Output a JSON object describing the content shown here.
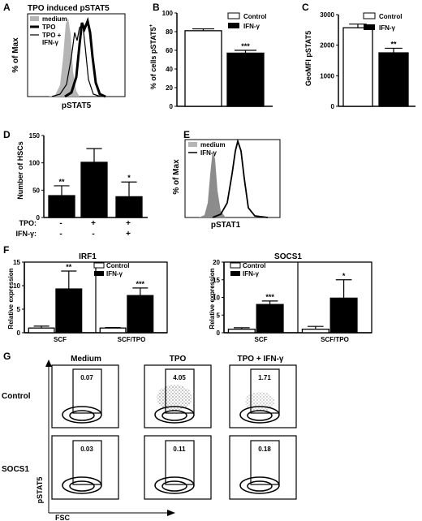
{
  "panel_labels": [
    "A",
    "B",
    "C",
    "D",
    "E",
    "F",
    "G"
  ],
  "panel_a": {
    "title": "TPO induced pSTAT5",
    "ylabel": "% of Max",
    "xlabel": "pSTAT5",
    "legend": [
      {
        "label": "medium",
        "style": "gray-fill"
      },
      {
        "label": "TPO",
        "style": "black-thick"
      },
      {
        "label": "TPO +",
        "style": "black-thin"
      },
      {
        "label": "IFN-γ",
        "style": "none"
      }
    ]
  },
  "panel_b": {
    "ylabel": "% of cells pSTAT5",
    "ylabel_sup": "+",
    "legend": [
      "Control",
      "IFN-γ"
    ],
    "sig": "***"
  },
  "panel_c": {
    "ylabel": "GeoMFI pSTAT5",
    "legend": [
      "Control",
      "IFN-γ"
    ],
    "sig": "**"
  },
  "panel_d": {
    "ylabel": "Number of HSCs",
    "row_labels": [
      "TPO:",
      "IFN-γ:"
    ],
    "tpo": [
      "-",
      "+",
      "+"
    ],
    "ifn": [
      "-",
      "-",
      "+"
    ],
    "sig": [
      "**",
      "",
      "*"
    ]
  },
  "panel_e": {
    "ylabel": "% of Max",
    "xlabel": "pSTAT1",
    "legend": [
      "medium",
      "IFN-γ"
    ]
  },
  "panel_f": {
    "ylabel": "Relative expression",
    "legend": [
      "Control",
      "IFN-γ"
    ],
    "groups": [
      "SCF",
      "SCF/TPO"
    ],
    "sig": [
      [
        "",
        "**"
      ],
      [
        "",
        "***"
      ]
    ],
    "sig2": [
      [
        "",
        "***"
      ],
      [
        "",
        "*"
      ]
    ]
  },
  "panel_g": {
    "columns": [
      "Medium",
      "TPO",
      "TPO + IFN-γ"
    ],
    "rows": [
      "Control",
      "SOCS1"
    ],
    "values": [
      [
        "0.07",
        "4.05",
        "1.71"
      ],
      [
        "0.03",
        "0.11",
        "0.18"
      ]
    ],
    "ylabel": "pSTAT5",
    "xlabel": "FSC"
  },
  "chart_data": [
    {
      "type": "bar",
      "panel": "B",
      "categories": [
        "Control",
        "IFN-γ"
      ],
      "values": [
        81,
        57
      ],
      "errors": [
        2,
        3
      ],
      "colors": [
        "#ffffff",
        "#000000"
      ],
      "ylim": [
        0,
        100
      ],
      "yticks": [
        0,
        20,
        40,
        60,
        80,
        100
      ]
    },
    {
      "type": "bar",
      "panel": "C",
      "categories": [
        "Control",
        "IFN-γ"
      ],
      "values": [
        2570,
        1750
      ],
      "errors": [
        120,
        150
      ],
      "colors": [
        "#ffffff",
        "#000000"
      ],
      "ylim": [
        0,
        3000
      ],
      "yticks": [
        0,
        1000,
        2000,
        3000
      ]
    },
    {
      "type": "bar",
      "panel": "D",
      "categories": [
        "-/-",
        "+/-",
        "+/+"
      ],
      "values": [
        40,
        101,
        38
      ],
      "errors": [
        18,
        25,
        27
      ],
      "ylim": [
        0,
        150
      ],
      "yticks": [
        0,
        50,
        100,
        150
      ]
    },
    {
      "type": "bar",
      "panel": "F",
      "title": "IRF1",
      "categories": [
        "SCF",
        "SCF/TPO"
      ],
      "series": [
        {
          "name": "Control",
          "values": [
            1.0,
            1.0
          ],
          "errors": [
            0.4,
            0.1
          ]
        },
        {
          "name": "IFN-γ",
          "values": [
            9.3,
            7.9
          ],
          "errors": [
            3.8,
            1.6
          ]
        }
      ],
      "ylim": [
        0,
        15
      ],
      "yticks": [
        0,
        5,
        10,
        15
      ]
    },
    {
      "type": "bar",
      "panel": "F",
      "title": "SOCS1",
      "categories": [
        "SCF",
        "SCF/TPO"
      ],
      "series": [
        {
          "name": "Control",
          "values": [
            1.0,
            1.0
          ],
          "errors": [
            0.4,
            0.8
          ]
        },
        {
          "name": "IFN-γ",
          "values": [
            8.0,
            9.8
          ],
          "errors": [
            1.0,
            5.2
          ]
        }
      ],
      "ylim": [
        0,
        20
      ],
      "yticks": [
        0,
        5,
        10,
        15,
        20
      ]
    }
  ]
}
